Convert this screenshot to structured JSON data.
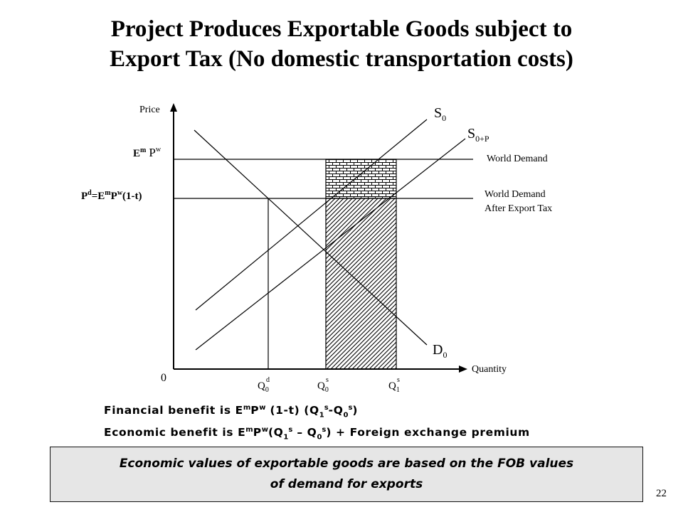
{
  "title": {
    "line1": "Project Produces Exportable Goods subject to",
    "line2": "Export Tax (No domestic transportation costs)"
  },
  "diagram": {
    "y_axis_label": "Price",
    "x_axis_label": "Quantity",
    "origin_label": "0",
    "supply_s0": {
      "base": "S",
      "sub": "0"
    },
    "supply_s0p": {
      "base": "S",
      "sub": "0+P"
    },
    "demand_d0": {
      "base": "D",
      "sub": "0"
    },
    "world_demand": "World Demand",
    "world_demand_tax_line1": "World Demand",
    "world_demand_tax_line2": "After Export Tax",
    "price_em": {
      "e": "E",
      "e_sup": "m",
      "p": "P",
      "p_sup": "w"
    },
    "price_pd": {
      "p": "P",
      "p_sup": "d",
      "eq": "=E",
      "e_sup": "m",
      "p2": "P",
      "p2_sup": "w",
      "tail": "(1-t)"
    },
    "q0d": {
      "base": "Q",
      "sub": "0",
      "sup": "d"
    },
    "q0s": {
      "base": "Q",
      "sub": "0",
      "sup": "s"
    },
    "q1s": {
      "base": "Q",
      "sub": "1",
      "sup": "s"
    }
  },
  "benefits": {
    "financial": {
      "t1": "Financial benefit is E",
      "s1": "m",
      "t2": "P",
      "s2": "w",
      "t3": " (1-t) (Q",
      "b3": "1",
      "s3": "s",
      "t4": "-Q",
      "b4": "0",
      "s4": "s",
      "t5": ")"
    },
    "economic": {
      "t1": "Economic benefit is E",
      "s1": "m",
      "t2": "P",
      "s2": "w",
      "t3": "(Q",
      "b3": "1",
      "s3": "s",
      "t4": " – Q",
      "b4": "0",
      "s4": "s",
      "t5": ") + Foreign exchange premium"
    }
  },
  "note": {
    "line1": "Economic values of exportable goods are based on the FOB values",
    "line2": "of demand for exports"
  },
  "page_number": "22"
}
